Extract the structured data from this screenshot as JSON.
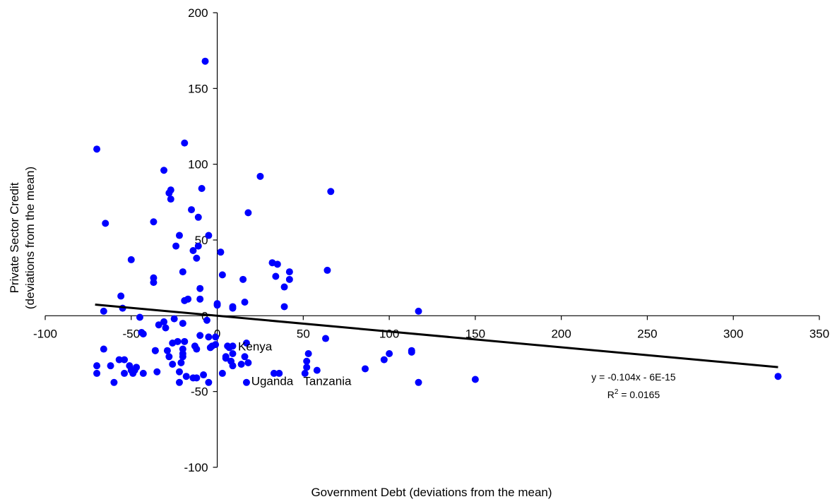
{
  "chart_data": {
    "type": "scatter",
    "title": "",
    "xlabel": "Government Debt (deviations from the mean)",
    "ylabel_line1": "Private Sector Credit",
    "ylabel_line2": "(deviations from the mean)",
    "xlim": [
      -100,
      350
    ],
    "ylim": [
      -100,
      200
    ],
    "x_ticks": [
      -100,
      -50,
      0,
      50,
      100,
      150,
      200,
      250,
      300,
      350
    ],
    "y_ticks": [
      -100,
      -50,
      0,
      50,
      100,
      150,
      200
    ],
    "x_tick_labels": [
      "-100",
      "-50",
      "0",
      "50",
      "100",
      "150",
      "200",
      "250",
      "300",
      "350"
    ],
    "y_tick_labels": [
      "-100",
      "-50",
      "0",
      "50",
      "100",
      "150",
      "200"
    ],
    "grid": false,
    "legend": "none",
    "point_color": "#0000ff",
    "trendline": {
      "slope": -0.104,
      "intercept": 0,
      "x_range": [
        -71,
        326
      ],
      "equation_label": "y = -0.104x - 6E-15",
      "r2_prefix": "R",
      "r2_sup": "2",
      "r2_suffix": " = 0.0165"
    },
    "labels": [
      {
        "text": "Kenya",
        "x": 22,
        "y": -20
      },
      {
        "text": "Uganda",
        "x": 32,
        "y": -43
      },
      {
        "text": "Tanzania",
        "x": 64,
        "y": -43
      }
    ],
    "points": [
      [
        -70,
        110
      ],
      [
        -70,
        -33
      ],
      [
        -70,
        -38
      ],
      [
        -66,
        3
      ],
      [
        -66,
        -22
      ],
      [
        -65,
        61
      ],
      [
        -62,
        -33
      ],
      [
        -60,
        -44
      ],
      [
        -57,
        -29
      ],
      [
        -56,
        13
      ],
      [
        -55,
        5
      ],
      [
        -54,
        -29
      ],
      [
        -54,
        -38
      ],
      [
        -51,
        -33
      ],
      [
        -50,
        37
      ],
      [
        -50,
        -36
      ],
      [
        -49,
        -38
      ],
      [
        -48,
        -36
      ],
      [
        -47,
        -34
      ],
      [
        -45,
        -1
      ],
      [
        -44,
        -11
      ],
      [
        -43,
        -12
      ],
      [
        -43,
        -38
      ],
      [
        -37,
        25
      ],
      [
        -37,
        22
      ],
      [
        -37,
        62
      ],
      [
        -36,
        -23
      ],
      [
        -36,
        -23
      ],
      [
        -35,
        -37
      ],
      [
        -34,
        -6
      ],
      [
        -31,
        -4
      ],
      [
        -31,
        96
      ],
      [
        -30,
        -8
      ],
      [
        -29,
        -23
      ],
      [
        -28,
        -27
      ],
      [
        -28,
        81
      ],
      [
        -27,
        83
      ],
      [
        -27,
        77
      ],
      [
        -26,
        -18
      ],
      [
        -26,
        -32
      ],
      [
        -25,
        -2
      ],
      [
        -24,
        46
      ],
      [
        -23,
        -17
      ],
      [
        -22,
        -37
      ],
      [
        -22,
        53
      ],
      [
        -22,
        -44
      ],
      [
        -21,
        -31
      ],
      [
        -20,
        -22
      ],
      [
        -20,
        -27
      ],
      [
        -20,
        -25
      ],
      [
        -20,
        -5
      ],
      [
        -20,
        29
      ],
      [
        -19,
        114
      ],
      [
        -19,
        10
      ],
      [
        -19,
        -17
      ],
      [
        -18,
        -40
      ],
      [
        -17,
        11
      ],
      [
        -15,
        70
      ],
      [
        -14,
        -41
      ],
      [
        -14,
        43
      ],
      [
        -13,
        -20
      ],
      [
        -12,
        -41
      ],
      [
        -12,
        -22
      ],
      [
        -12,
        38
      ],
      [
        -11,
        46
      ],
      [
        -11,
        65
      ],
      [
        -10,
        18
      ],
      [
        -10,
        11
      ],
      [
        -10,
        -13
      ],
      [
        -9,
        84
      ],
      [
        -8,
        -39
      ],
      [
        -7,
        168
      ],
      [
        -6,
        -3
      ],
      [
        -5,
        53
      ],
      [
        -5,
        -14
      ],
      [
        -5,
        -44
      ],
      [
        -4,
        -21
      ],
      [
        -3,
        -20
      ],
      [
        -1,
        -14
      ],
      [
        -1,
        -19
      ],
      [
        0,
        7
      ],
      [
        0,
        8
      ],
      [
        2,
        42
      ],
      [
        3,
        27
      ],
      [
        3,
        -38
      ],
      [
        5,
        -27
      ],
      [
        5,
        -28
      ],
      [
        6,
        -20
      ],
      [
        7,
        -21
      ],
      [
        8,
        -30
      ],
      [
        9,
        -20
      ],
      [
        9,
        -25
      ],
      [
        9,
        5
      ],
      [
        9,
        6
      ],
      [
        9,
        -33
      ],
      [
        14,
        -32
      ],
      [
        15,
        24
      ],
      [
        16,
        -27
      ],
      [
        16,
        9
      ],
      [
        17,
        -18
      ],
      [
        17,
        -44
      ],
      [
        18,
        -31
      ],
      [
        18,
        68
      ],
      [
        25,
        92
      ],
      [
        32,
        35
      ],
      [
        33,
        -38
      ],
      [
        34,
        26
      ],
      [
        35,
        34
      ],
      [
        36,
        -38
      ],
      [
        39,
        6
      ],
      [
        39,
        19
      ],
      [
        42,
        24
      ],
      [
        42,
        29
      ],
      [
        51,
        -38
      ],
      [
        52,
        -30
      ],
      [
        52,
        -34
      ],
      [
        53,
        -25
      ],
      [
        58,
        -36
      ],
      [
        63,
        -15
      ],
      [
        64,
        30
      ],
      [
        66,
        82
      ],
      [
        86,
        -35
      ],
      [
        97,
        -29
      ],
      [
        100,
        -25
      ],
      [
        113,
        -23
      ],
      [
        113,
        -24
      ],
      [
        117,
        -44
      ],
      [
        117,
        3
      ],
      [
        150,
        -42
      ],
      [
        326,
        -40
      ]
    ]
  }
}
